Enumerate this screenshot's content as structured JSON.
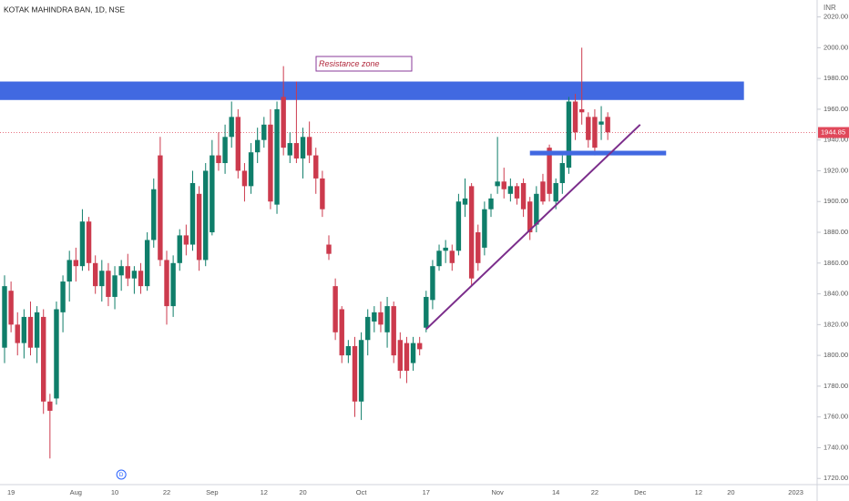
{
  "chart_data": {
    "type": "candlestick",
    "title": "KOTAK MAHINDRA BAN, 1D, NSE",
    "currency": "INR",
    "up_color": "#0f7e6a",
    "down_color": "#cc3a4d",
    "categories": [
      null,
      "19",
      null,
      null,
      null,
      null,
      null,
      null,
      null,
      null,
      null,
      "Aug",
      null,
      null,
      null,
      null,
      null,
      "10",
      null,
      null,
      null,
      null,
      null,
      null,
      null,
      "22",
      null,
      null,
      null,
      null,
      null,
      null,
      "Sep",
      null,
      null,
      null,
      null,
      null,
      null,
      null,
      "12",
      null,
      null,
      null,
      null,
      null,
      "20",
      null,
      null,
      null,
      null,
      null,
      null,
      null,
      null,
      "Oct",
      null,
      null,
      null,
      null,
      null,
      null,
      null,
      null,
      null,
      "17",
      null,
      null,
      null,
      null,
      null,
      null,
      null,
      null,
      null,
      null,
      "Nov",
      null,
      null,
      null,
      null,
      null,
      null,
      null,
      null,
      "14",
      null,
      null,
      null,
      null,
      null,
      "22",
      null,
      null,
      null,
      null,
      null,
      null,
      "Dec",
      null,
      null,
      null,
      null,
      null,
      null,
      null,
      null,
      "12",
      null,
      null,
      null,
      null,
      "20",
      null,
      null,
      null,
      null,
      null,
      null,
      null,
      null,
      null,
      "2023",
      null,
      null
    ],
    "open": [
      1805,
      1842,
      1820,
      1808,
      1825,
      1805,
      1825,
      1770,
      1772,
      1828,
      1848,
      1862,
      1858,
      1887,
      1860,
      1845,
      1855,
      1838,
      1852,
      1858,
      1850,
      1855,
      1845,
      1875,
      1930,
      1862,
      1832,
      1860,
      1878,
      1872,
      1905,
      1862,
      1880,
      1930,
      1925,
      1942,
      1955,
      1920,
      1910,
      1932,
      1940,
      1950,
      1898,
      1968,
      1930,
      1938,
      1928,
      1942,
      1930,
      1915,
      1872,
      1845,
      1830,
      1800,
      1806,
      1770,
      1810,
      1822,
      1828,
      1815,
      1832,
      1810,
      1808,
      1795,
      1808,
      1818,
      1836,
      1858,
      1868,
      1868,
      1868,
      1898,
      1910,
      1880,
      1870,
      1895,
      1910,
      1913,
      1905,
      1910,
      1912,
      1900,
      1885,
      1913,
      1935,
      1900,
      1912,
      1922,
      1965,
      1960,
      1955,
      1955,
      1950,
      1955,
      null,
      null,
      null,
      null,
      null,
      null,
      null,
      null,
      null,
      null,
      null,
      null,
      null,
      null,
      null,
      null,
      null,
      null,
      null,
      null,
      null,
      null,
      null,
      null,
      null,
      null,
      null,
      null,
      null,
      null,
      null
    ],
    "high": [
      1852,
      1848,
      1828,
      1830,
      1835,
      1832,
      1830,
      1775,
      1835,
      1852,
      1868,
      1870,
      1895,
      1890,
      1865,
      1862,
      1860,
      1858,
      1862,
      1866,
      1858,
      1860,
      1880,
      1915,
      1942,
      1868,
      1865,
      1882,
      1885,
      1920,
      1910,
      1925,
      1940,
      1945,
      1950,
      1965,
      1960,
      1925,
      1938,
      1948,
      1955,
      1960,
      1965,
      1988,
      1945,
      1978,
      1948,
      1952,
      1935,
      1920,
      1878,
      1850,
      1832,
      1810,
      1812,
      1815,
      1830,
      1832,
      1835,
      1838,
      1835,
      1815,
      1812,
      1812,
      1812,
      1842,
      1862,
      1872,
      1875,
      1872,
      1905,
      1915,
      1912,
      1885,
      1900,
      1905,
      1942,
      1922,
      1915,
      1912,
      1915,
      1903,
      1910,
      1918,
      1937,
      1915,
      1930,
      1968,
      1970,
      2000,
      1958,
      1960,
      1962,
      1958,
      null,
      null,
      null,
      null,
      null,
      null,
      null,
      null,
      null,
      null,
      null,
      null,
      null,
      null,
      null,
      null,
      null,
      null,
      null,
      null,
      null,
      null,
      null,
      null,
      null,
      null,
      null,
      null,
      null,
      null,
      null
    ],
    "low": [
      1795,
      1815,
      1800,
      1798,
      1800,
      1795,
      1762,
      1733,
      1768,
      1815,
      1835,
      1848,
      1855,
      1855,
      1840,
      1835,
      1832,
      1830,
      1842,
      1845,
      1840,
      1840,
      1842,
      1870,
      1858,
      1820,
      1825,
      1855,
      1865,
      1868,
      1855,
      1858,
      1878,
      1920,
      1918,
      1935,
      1915,
      1900,
      1905,
      1925,
      1935,
      1895,
      1892,
      1930,
      1925,
      1925,
      1915,
      1925,
      1905,
      1890,
      1862,
      1810,
      1795,
      1795,
      1760,
      1758,
      1800,
      1815,
      1815,
      1805,
      1795,
      1785,
      1782,
      1790,
      1800,
      1815,
      1830,
      1855,
      1860,
      1855,
      1865,
      1890,
      1845,
      1855,
      1865,
      1890,
      1905,
      1902,
      1900,
      1898,
      1890,
      1875,
      1880,
      1898,
      1900,
      1895,
      1905,
      1918,
      1940,
      1950,
      1935,
      1930,
      1940,
      1940,
      null,
      null,
      null,
      null,
      null,
      null,
      null,
      null,
      null,
      null,
      null,
      null,
      null,
      null,
      null,
      null,
      null,
      null,
      null,
      null,
      null,
      null,
      null,
      null,
      null,
      null,
      null,
      null,
      null,
      null,
      null
    ],
    "close": [
      1845,
      1820,
      1808,
      1825,
      1805,
      1828,
      1770,
      1764,
      1830,
      1848,
      1862,
      1858,
      1887,
      1860,
      1845,
      1855,
      1838,
      1852,
      1858,
      1850,
      1855,
      1845,
      1875,
      1908,
      1862,
      1832,
      1860,
      1878,
      1872,
      1912,
      1862,
      1920,
      1930,
      1925,
      1942,
      1955,
      1920,
      1910,
      1932,
      1940,
      1950,
      1900,
      1960,
      1935,
      1938,
      1928,
      1942,
      1930,
      1915,
      1895,
      1866,
      1815,
      1800,
      1806,
      1770,
      1810,
      1825,
      1828,
      1820,
      1832,
      1800,
      1790,
      1790,
      1808,
      1804,
      1838,
      1858,
      1868,
      1870,
      1860,
      1900,
      1902,
      1850,
      1860,
      1895,
      1902,
      1913,
      1908,
      1910,
      1902,
      1895,
      1880,
      1905,
      1900,
      1905,
      1912,
      1925,
      1965,
      1945,
      1958,
      1940,
      1935,
      1952,
      1945,
      null,
      null,
      null,
      null,
      null,
      null,
      null,
      null,
      null,
      null,
      null,
      null,
      null,
      null,
      null,
      null,
      null,
      null,
      null,
      null,
      null,
      null,
      null,
      null,
      null,
      null,
      null,
      null,
      null,
      null,
      null
    ],
    "ylim": [
      1716,
      2031
    ],
    "yticks": [
      {
        "value": 1720,
        "label": "1720.00"
      },
      {
        "value": 1740,
        "label": "1740.00"
      },
      {
        "value": 1760,
        "label": "1760.00"
      },
      {
        "value": 1780,
        "label": "1780.00"
      },
      {
        "value": 1800,
        "label": "1800.00"
      },
      {
        "value": 1820,
        "label": "1820.00"
      },
      {
        "value": 1840,
        "label": "1840.00"
      },
      {
        "value": 1860,
        "label": "1860.00"
      },
      {
        "value": 1880,
        "label": "1880.00"
      },
      {
        "value": 1900,
        "label": "1900.00"
      },
      {
        "value": 1920,
        "label": "1920.00"
      },
      {
        "value": 1940,
        "label": "1940.00"
      },
      {
        "value": 1960,
        "label": "1960.00"
      },
      {
        "value": 1980,
        "label": "1980.00"
      },
      {
        "value": 2000,
        "label": "2000.00"
      },
      {
        "value": 2020,
        "label": "2020.00"
      }
    ],
    "last_price": 1944.85,
    "last_price_color": "#e0485a",
    "resistance_zone": {
      "label": "Resistance zone",
      "x": [
        0,
        114
      ],
      "ylim": [
        1966,
        1978
      ],
      "color": "#4169e1"
    },
    "support_zone": {
      "x": [
        81,
        102
      ],
      "ylim": [
        1930,
        1933
      ],
      "color": "#4169e1"
    },
    "trendline": {
      "x": [
        65,
        98
      ],
      "y": [
        1817,
        1950
      ],
      "color": "#7b2d8b"
    },
    "dividend_marker": {
      "label": "D",
      "x": 18
    }
  }
}
